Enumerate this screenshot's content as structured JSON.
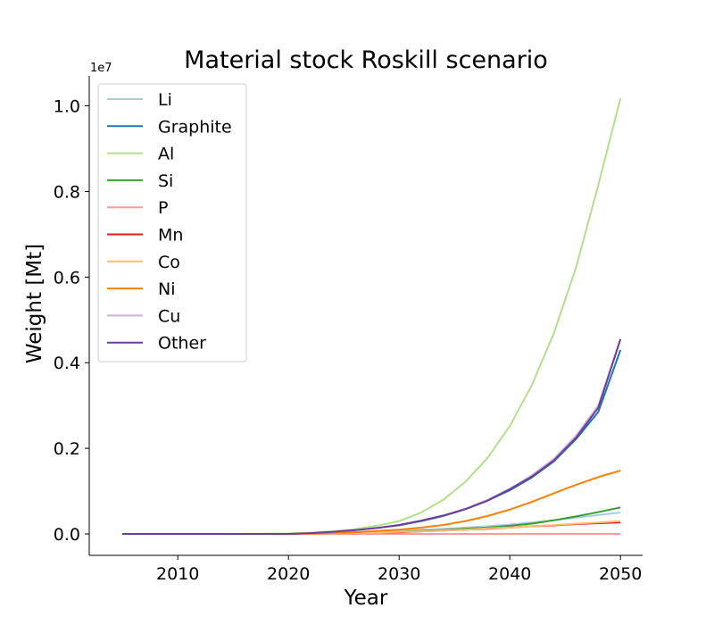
{
  "chart_data": {
    "type": "line",
    "title": "Material stock Roskill scenario",
    "xlabel": "Year",
    "ylabel": "Weight [Mt]",
    "y_offset_label": "1e7",
    "xlim": [
      2002,
      2052
    ],
    "ylim": [
      -0.05,
      1.07
    ],
    "x_ticks": [
      2010,
      2020,
      2030,
      2040,
      2050
    ],
    "y_ticks": [
      0.0,
      0.2,
      0.4,
      0.6,
      0.8,
      1.0
    ],
    "y_tick_labels": [
      "0.0",
      "0.2",
      "0.4",
      "0.6",
      "0.8",
      "1.0"
    ],
    "legend_position": "upper-left",
    "grid": false,
    "x": [
      2005,
      2010,
      2015,
      2020,
      2022,
      2024,
      2026,
      2028,
      2030,
      2032,
      2034,
      2036,
      2038,
      2040,
      2042,
      2044,
      2046,
      2048,
      2050
    ],
    "series": [
      {
        "name": "Li",
        "color": "#a6cee3",
        "values": [
          0,
          0,
          0,
          0,
          0.001,
          0.002,
          0.004,
          0.006,
          0.008,
          0.01,
          0.012,
          0.015,
          0.018,
          0.022,
          0.027,
          0.032,
          0.038,
          0.044,
          0.05
        ]
      },
      {
        "name": "Graphite",
        "color": "#1f78b4",
        "values": [
          0,
          0,
          0,
          0,
          0.002,
          0.005,
          0.009,
          0.014,
          0.02,
          0.03,
          0.042,
          0.058,
          0.078,
          0.102,
          0.132,
          0.17,
          0.222,
          0.285,
          0.43
        ]
      },
      {
        "name": "Al",
        "color": "#b2df8a",
        "values": [
          0,
          0,
          0,
          0.001,
          0.003,
          0.006,
          0.011,
          0.019,
          0.03,
          0.05,
          0.08,
          0.122,
          0.178,
          0.252,
          0.348,
          0.47,
          0.624,
          0.815,
          1.018
        ]
      },
      {
        "name": "Si",
        "color": "#33a02c",
        "values": [
          0,
          0,
          0,
          0,
          0.0005,
          0.001,
          0.002,
          0.003,
          0.005,
          0.007,
          0.009,
          0.012,
          0.015,
          0.019,
          0.024,
          0.032,
          0.041,
          0.051,
          0.062
        ]
      },
      {
        "name": "P",
        "color": "#fb9a99",
        "values": [
          0,
          0,
          0,
          0,
          0,
          0,
          0,
          0,
          0,
          0,
          0,
          0,
          0,
          0,
          0,
          0,
          0,
          0,
          0
        ]
      },
      {
        "name": "Mn",
        "color": "#e31a1c",
        "values": [
          0,
          0,
          0,
          0,
          0.0005,
          0.001,
          0.002,
          0.003,
          0.004,
          0.006,
          0.008,
          0.01,
          0.012,
          0.015,
          0.018,
          0.02,
          0.023,
          0.025,
          0.027
        ]
      },
      {
        "name": "Co",
        "color": "#fdbf6f",
        "values": [
          0,
          0,
          0,
          0,
          0.0005,
          0.001,
          0.002,
          0.003,
          0.005,
          0.006,
          0.008,
          0.01,
          0.013,
          0.015,
          0.018,
          0.021,
          0.024,
          0.027,
          0.03
        ]
      },
      {
        "name": "Ni",
        "color": "#ff7f00",
        "values": [
          0,
          0,
          0,
          0,
          0.001,
          0.002,
          0.004,
          0.007,
          0.01,
          0.015,
          0.021,
          0.03,
          0.042,
          0.057,
          0.075,
          0.095,
          0.115,
          0.133,
          0.148
        ]
      },
      {
        "name": "Cu",
        "color": "#cab2d6",
        "values": [
          0,
          0,
          0,
          0,
          0.002,
          0.005,
          0.009,
          0.014,
          0.021,
          0.031,
          0.043,
          0.059,
          0.08,
          0.106,
          0.137,
          0.176,
          0.23,
          0.3,
          0.455
        ]
      },
      {
        "name": "Other",
        "color": "#6a3d9a",
        "values": [
          0,
          0,
          0,
          0,
          0.002,
          0.005,
          0.009,
          0.014,
          0.021,
          0.031,
          0.043,
          0.058,
          0.078,
          0.104,
          0.134,
          0.172,
          0.225,
          0.295,
          0.455
        ]
      }
    ]
  }
}
